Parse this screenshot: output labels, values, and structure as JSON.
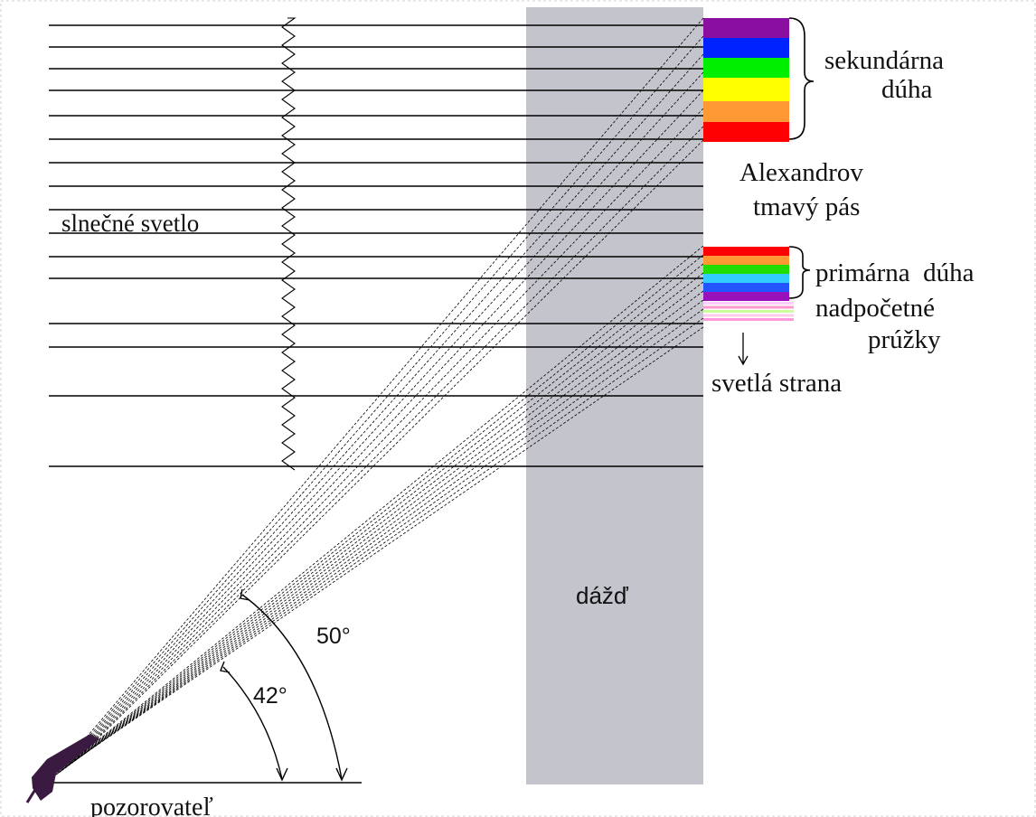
{
  "labels": {
    "sunlight": "slnečné svetlo",
    "secondary_rainbow_line1": "sekundárna",
    "secondary_rainbow_line2": "dúha",
    "alexander_band_line1": "Alexandrov",
    "alexander_band_line2": "tmavý pás",
    "primary_rainbow": "primárna  dúha",
    "supernumerary_line1": "nadpočetné",
    "supernumerary_line2": "prúžky",
    "bright_side": "svetlá strana",
    "rain": "dážď",
    "observer": "pozorovateľ",
    "angle_secondary": "50°",
    "angle_primary": "42°"
  },
  "colors": {
    "rain": "#c4c4cc",
    "secondary_bands": [
      "#8a0fa0",
      "#0022ff",
      "#00ee00",
      "#ffff00",
      "#ff9933",
      "#ff0000"
    ],
    "primary_bands": [
      "#ff0000",
      "#ff9933",
      "#22dd00",
      "#33ccff",
      "#2255ff",
      "#9911bb"
    ],
    "supernumerary_bands": [
      "#ffccff",
      "#ff99cc",
      "#ccff99",
      "#ffccee",
      "#ff99dd"
    ],
    "observer": "#3a1a40"
  }
}
